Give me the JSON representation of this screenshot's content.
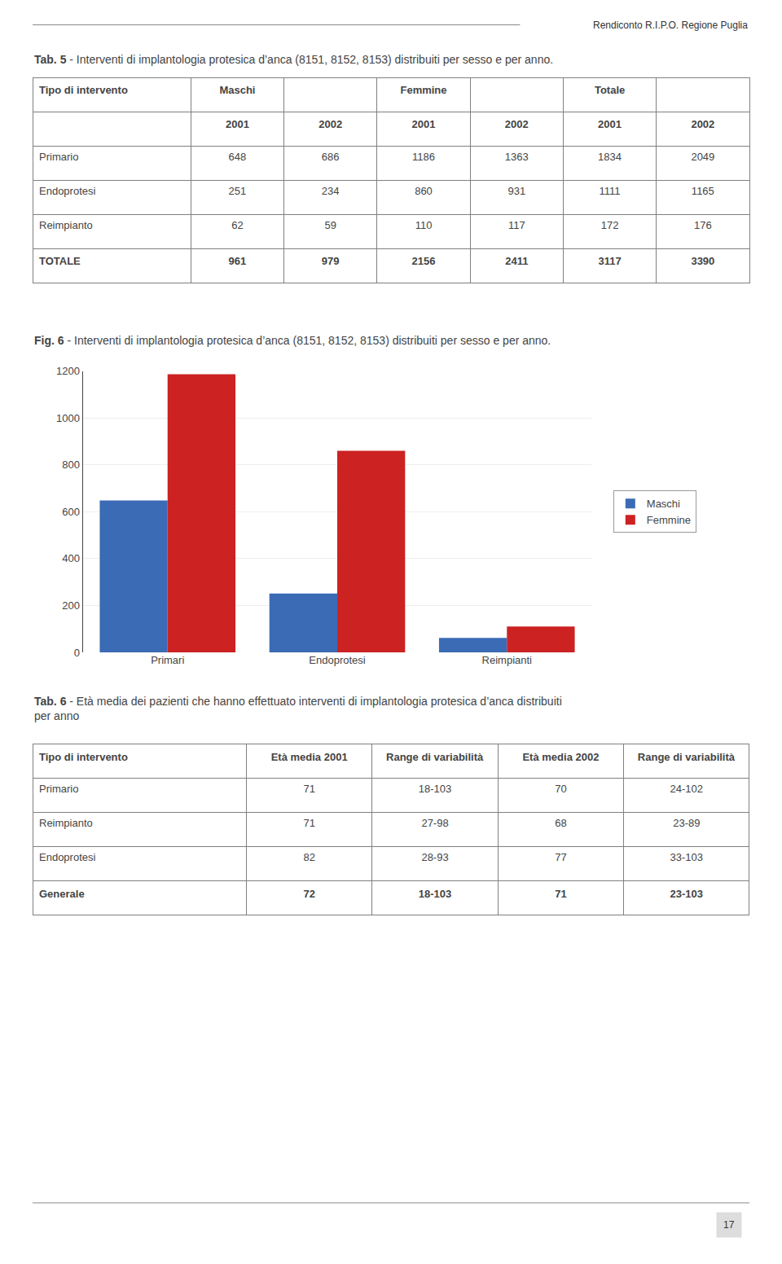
{
  "header": "Rendiconto R.I.P.O. Regione Puglia",
  "footer": "17",
  "chart_data": [
    {
      "type": "table",
      "title": "Tab. 5",
      "subtitle": " - Interventi di implantologia protesica d’anca (8151, 8152, 8153) distribuiti per sesso e per anno.",
      "groups": [
        "Tipo di intervento",
        "Maschi",
        "Femmine",
        "Totale"
      ],
      "columns": [
        null,
        "2001",
        "2002",
        "2001",
        "2002",
        "2001",
        "2002"
      ],
      "rows": [
        [
          "Primario",
          "648",
          "686",
          "1186",
          "1363",
          "1834",
          "2049"
        ],
        [
          "Endoprotesi",
          "251",
          "234",
          "860",
          "931",
          "1111",
          "1165"
        ],
        [
          "Reimpianto",
          "62",
          "59",
          "110",
          "117",
          "172",
          "176"
        ],
        [
          "TOTALE",
          "961",
          "979",
          "2156",
          "2411",
          "3117",
          "3390"
        ]
      ]
    },
    {
      "type": "bar",
      "title": "Fig. 6",
      "subtitle": " - Interventi di implantologia protesica d’anca (8151, 8152, 8153) distribuiti per sesso e per anno.",
      "categories": [
        "Primari",
        "Endoprotesi",
        "Reimpianti"
      ],
      "series": [
        {
          "name": "Maschi",
          "color": "#3B6BB5",
          "values": [
            648,
            251,
            62
          ]
        },
        {
          "name": "Femmine",
          "color": "#CC2222",
          "values": [
            1186,
            860,
            110
          ]
        }
      ],
      "ylim": [
        0,
        1200
      ],
      "yticks": [
        0,
        200,
        400,
        600,
        800,
        1000,
        1200
      ],
      "grid": true,
      "legend": "right"
    },
    {
      "type": "table",
      "title": "Tab. 6",
      "subtitle": [
        " - Età media dei pazienti che hanno effettuato interventi di implantologia protesica d’anca distribuiti",
        "per anno"
      ],
      "columns": [
        "Tipo di intervento",
        "Età media 2001",
        "Range di variabilità",
        "Età media 2002",
        "Range di variabilità"
      ],
      "rows": [
        [
          "Primario",
          "71",
          "18-103",
          "70",
          "24-102"
        ],
        [
          "Reimpianto",
          "71",
          "27-98",
          "68",
          "23-89"
        ],
        [
          "Endoprotesi",
          "82",
          "28-93",
          "77",
          "33-103"
        ],
        [
          "Generale",
          "72",
          "18-103",
          "71",
          "23-103"
        ]
      ]
    }
  ]
}
